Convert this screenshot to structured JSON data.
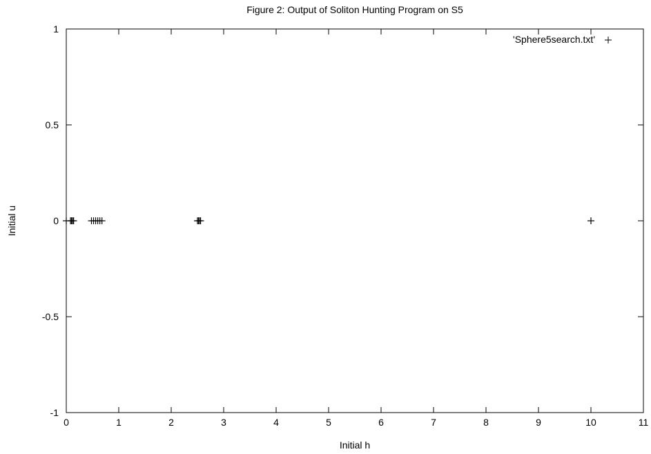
{
  "chart_data": {
    "type": "scatter",
    "title": "Figure 2: Output of Soliton Hunting Program on S5",
    "xlabel": "Initial h",
    "ylabel": "Initial u",
    "xlim": [
      0,
      11
    ],
    "ylim": [
      -1,
      1
    ],
    "x_ticks": [
      0,
      1,
      2,
      3,
      4,
      5,
      6,
      7,
      8,
      9,
      10,
      11
    ],
    "x_tick_labels": [
      "0",
      "1",
      "2",
      "3",
      "4",
      "5",
      "6",
      "7",
      "8",
      "9",
      "10",
      "11"
    ],
    "y_ticks": [
      -1,
      -0.5,
      0,
      0.5,
      1
    ],
    "y_tick_labels": [
      "-1",
      "-0.5",
      "0",
      "0.5",
      "1"
    ],
    "grid": false,
    "legend_position": "top-right",
    "marker": "+",
    "color": "#000000",
    "series": [
      {
        "name": "'Sphere5search.txt'",
        "x": [
          0.0,
          0.08,
          0.1,
          0.12,
          0.14,
          0.48,
          0.52,
          0.56,
          0.6,
          0.64,
          0.68,
          2.5,
          2.52,
          2.54,
          2.56,
          10.0
        ],
        "y": [
          0,
          0,
          0,
          0,
          0,
          0,
          0,
          0,
          0,
          0,
          0,
          0,
          0,
          0,
          0,
          0
        ]
      }
    ]
  }
}
